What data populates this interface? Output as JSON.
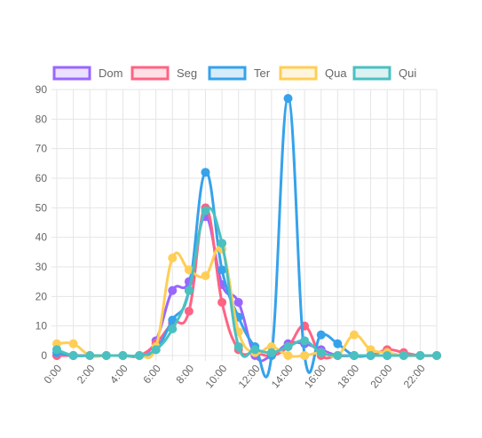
{
  "chart_data": {
    "type": "line",
    "title": "",
    "xlabel": "",
    "ylabel": "",
    "ylim": [
      0,
      90
    ],
    "y_ticks": [
      0,
      10,
      20,
      30,
      40,
      50,
      60,
      70,
      80,
      90
    ],
    "grid": true,
    "legend_position": "top",
    "x": [
      "0:00",
      "1:00",
      "2:00",
      "3:00",
      "4:00",
      "5:00",
      "6:00",
      "7:00",
      "8:00",
      "9:00",
      "10:00",
      "11:00",
      "12:00",
      "13:00",
      "14:00",
      "15:00",
      "16:00",
      "17:00",
      "18:00",
      "19:00",
      "20:00",
      "21:00",
      "22:00",
      "23:00"
    ],
    "x_tick_labels": [
      "0:00",
      "2:00",
      "4:00",
      "6:00",
      "8:00",
      "10:00",
      "12:00",
      "14:00",
      "16:00",
      "18:00",
      "20:00",
      "22:00"
    ],
    "series": [
      {
        "name": "Dom",
        "color": "#9966ff",
        "fill": "#ebe0ff",
        "values": [
          0,
          0,
          0,
          0,
          0,
          0,
          5,
          22,
          25,
          47,
          24,
          18,
          0,
          0,
          4,
          4,
          2,
          0,
          0,
          0,
          0,
          0,
          0,
          0
        ]
      },
      {
        "name": "Seg",
        "color": "#ff6384",
        "fill": "#ffe0e6",
        "values": [
          0,
          0,
          0,
          0,
          0,
          0,
          4,
          11,
          15,
          50,
          18,
          2,
          1,
          0,
          3,
          10,
          0,
          0,
          0,
          0,
          2,
          1,
          0,
          0
        ]
      },
      {
        "name": "Ter",
        "color": "#36a2eb",
        "fill": "#d7ecfb",
        "values": [
          1,
          0,
          0,
          0,
          0,
          0,
          2,
          12,
          22,
          62,
          29,
          13,
          3,
          0,
          87,
          0,
          7,
          4,
          0,
          0,
          0,
          0,
          0,
          0
        ]
      },
      {
        "name": "Qua",
        "color": "#ffce56",
        "fill": "#fff5dd",
        "values": [
          4,
          4,
          0,
          0,
          0,
          0,
          3,
          33,
          29,
          27,
          36,
          8,
          1,
          3,
          0,
          0,
          1,
          0,
          7,
          2,
          1,
          0,
          0,
          0
        ]
      },
      {
        "name": "Qui",
        "color": "#4bc0c0",
        "fill": "#dbf2f2",
        "values": [
          2,
          0,
          0,
          0,
          0,
          0,
          2,
          9,
          22,
          49,
          38,
          3,
          2,
          1,
          3,
          5,
          1,
          0,
          0,
          0,
          0,
          0,
          0,
          0
        ]
      }
    ]
  }
}
